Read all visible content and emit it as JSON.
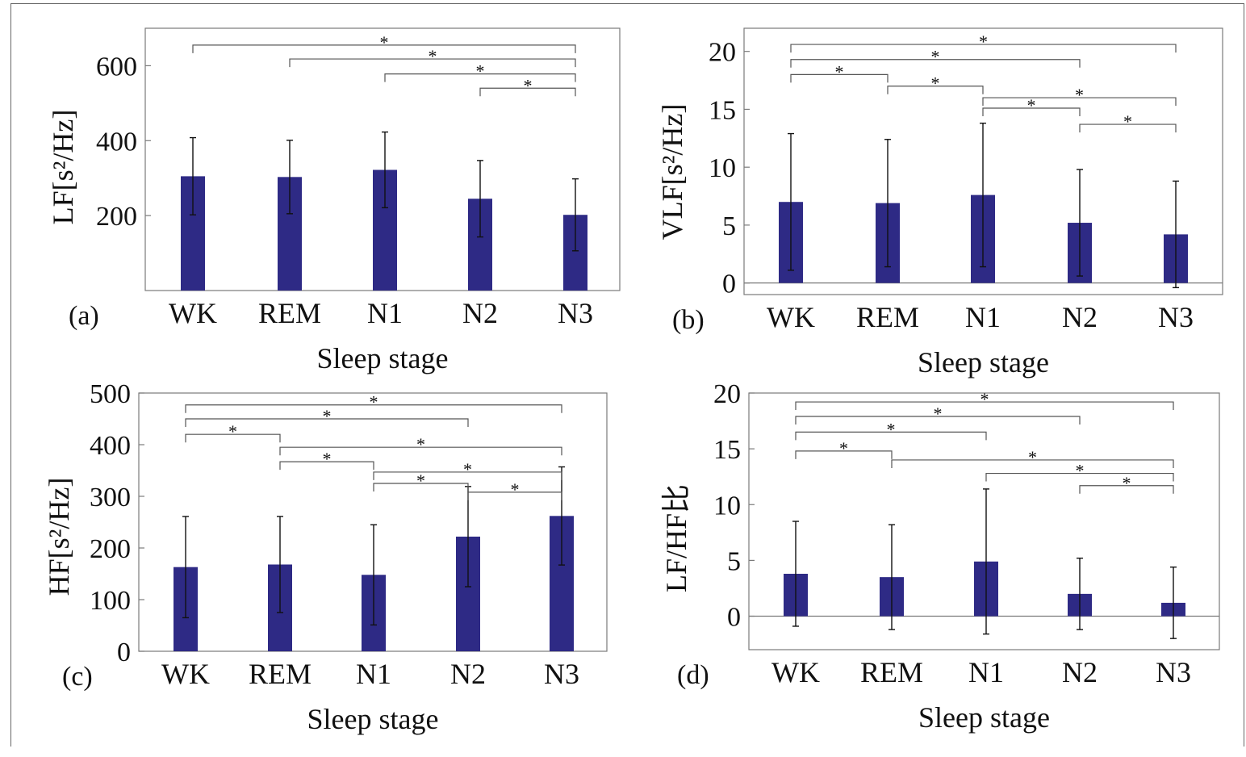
{
  "chart_data": [
    {
      "panel": "(a)",
      "type": "bar",
      "categories": [
        "WK",
        "REM",
        "N1",
        "N2",
        "N3"
      ],
      "values": [
        305,
        303,
        322,
        245,
        202
      ],
      "error": [
        103,
        98,
        101,
        102,
        96
      ],
      "ylabel": "LF[s²/Hz]",
      "xlabel": "Sleep stage",
      "ylim": [
        0,
        700
      ],
      "yticks": [
        200,
        400,
        600
      ],
      "baseline": false,
      "grid": false,
      "significance": [
        {
          "from": 0,
          "to": 4,
          "y": 655
        },
        {
          "from": 1,
          "to": 4,
          "y": 618
        },
        {
          "from": 2,
          "to": 4,
          "y": 578
        },
        {
          "from": 3,
          "to": 4,
          "y": 540
        }
      ],
      "sig_label": "*"
    },
    {
      "panel": "(b)",
      "type": "bar",
      "categories": [
        "WK",
        "REM",
        "N1",
        "N2",
        "N3"
      ],
      "values": [
        7.0,
        6.9,
        7.6,
        5.2,
        4.2
      ],
      "error": [
        5.9,
        5.5,
        6.2,
        4.6,
        4.6
      ],
      "ylabel": "VLF[s²/Hz]",
      "xlabel": "Sleep stage",
      "ylim": [
        -1,
        22
      ],
      "yticks": [
        0,
        5,
        10,
        15,
        20
      ],
      "baseline": true,
      "grid": false,
      "significance": [
        {
          "from": 0,
          "to": 4,
          "y": 20.6
        },
        {
          "from": 0,
          "to": 3,
          "y": 19.3
        },
        {
          "from": 0,
          "to": 1,
          "y": 18.0
        },
        {
          "from": 1,
          "to": 2,
          "y": 17.0
        },
        {
          "from": 2,
          "to": 4,
          "y": 16.0
        },
        {
          "from": 2,
          "to": 3,
          "y": 15.1
        },
        {
          "from": 3,
          "to": 4,
          "y": 13.7
        }
      ],
      "sig_label": "*"
    },
    {
      "panel": "(c)",
      "type": "bar",
      "categories": [
        "WK",
        "REM",
        "N1",
        "N2",
        "N3"
      ],
      "values": [
        163,
        168,
        148,
        222,
        262
      ],
      "error": [
        98,
        93,
        97,
        97,
        95
      ],
      "ylabel": "HF[s²/Hz]",
      "xlabel": "Sleep stage",
      "ylim": [
        0,
        500
      ],
      "yticks": [
        0,
        100,
        200,
        300,
        400,
        500
      ],
      "baseline": false,
      "grid": false,
      "significance": [
        {
          "from": 0,
          "to": 4,
          "y": 477
        },
        {
          "from": 0,
          "to": 3,
          "y": 450
        },
        {
          "from": 0,
          "to": 1,
          "y": 420
        },
        {
          "from": 1,
          "to": 4,
          "y": 395
        },
        {
          "from": 1,
          "to": 2,
          "y": 367
        },
        {
          "from": 2,
          "to": 4,
          "y": 347
        },
        {
          "from": 2,
          "to": 3,
          "y": 325
        },
        {
          "from": 3,
          "to": 4,
          "y": 308
        }
      ],
      "sig_label": "*"
    },
    {
      "panel": "(d)",
      "type": "bar",
      "categories": [
        "WK",
        "REM",
        "N1",
        "N2",
        "N3"
      ],
      "values": [
        3.8,
        3.5,
        4.9,
        2.0,
        1.2
      ],
      "error": [
        4.7,
        4.7,
        6.5,
        3.2,
        3.2
      ],
      "ylabel": "LF/HF比",
      "xlabel": "Sleep stage",
      "ylim": [
        -3,
        20
      ],
      "yticks": [
        0,
        5,
        10,
        15,
        20
      ],
      "baseline": true,
      "grid": false,
      "significance": [
        {
          "from": 0,
          "to": 4,
          "y": 19.2
        },
        {
          "from": 0,
          "to": 3,
          "y": 17.9
        },
        {
          "from": 0,
          "to": 2,
          "y": 16.5
        },
        {
          "from": 0,
          "to": 1,
          "y": 14.8
        },
        {
          "from": 1,
          "to": 4,
          "y": 14.0
        },
        {
          "from": 2,
          "to": 4,
          "y": 12.8
        },
        {
          "from": 3,
          "to": 4,
          "y": 11.7
        }
      ],
      "sig_label": "*"
    }
  ],
  "colors": {
    "bar": "#2e2a85",
    "axis": "#7a7a7a",
    "bracket": "#555555",
    "errorbar": "#111111"
  }
}
